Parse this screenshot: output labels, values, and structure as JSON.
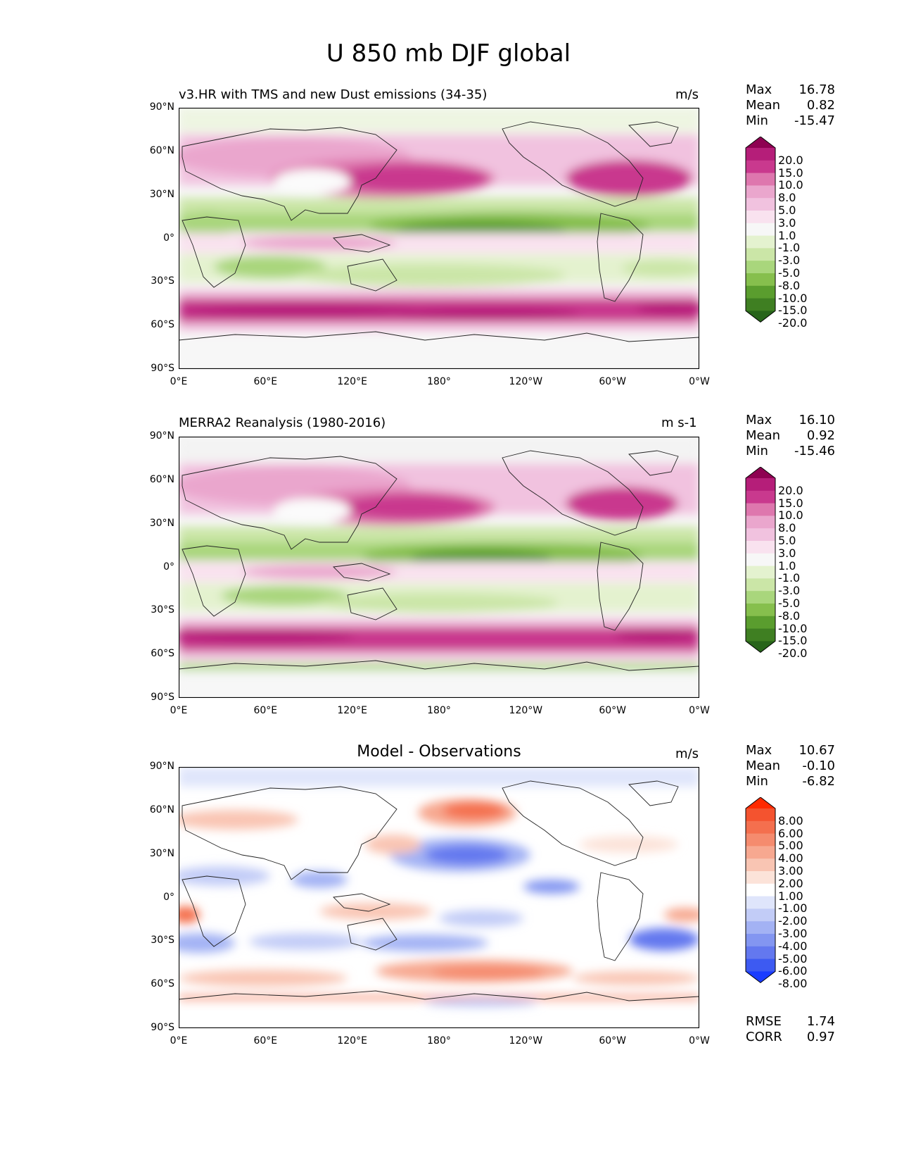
{
  "title": "U 850 mb DJF global",
  "axes": {
    "lat_labels": [
      "90°N",
      "60°N",
      "30°N",
      "0°",
      "30°S",
      "60°S",
      "90°S"
    ],
    "lon_labels": [
      "0°E",
      "60°E",
      "120°E",
      "180°",
      "120°W",
      "60°W",
      "0°W"
    ]
  },
  "panels": [
    {
      "title": "v3.HR with TMS and new Dust emissions (34-35)",
      "units": "m/s",
      "stats": [
        {
          "label": "Max",
          "value": "16.78"
        },
        {
          "label": "Mean",
          "value": "0.82"
        },
        {
          "label": "Min",
          "value": "-15.47"
        }
      ],
      "colorbar": {
        "labels": [
          "20.0",
          "15.0",
          "10.0",
          "8.0",
          "5.0",
          "3.0",
          "1.0",
          "-1.0",
          "-3.0",
          "-5.0",
          "-8.0",
          "-10.0",
          "-15.0",
          "-20.0"
        ],
        "colors": [
          "#8e0152",
          "#b51e79",
          "#c9398e",
          "#de77ae",
          "#eaa6cd",
          "#f1c2df",
          "#f9e2ef",
          "#f7f7f7",
          "#e4f2cf",
          "#cbe6a7",
          "#a9d67c",
          "#86bf4d",
          "#5a9d2e",
          "#3f7f22",
          "#27641a"
        ]
      }
    },
    {
      "title": "MERRA2 Reanalysis (1980-2016)",
      "units": "m s-1",
      "stats": [
        {
          "label": "Max",
          "value": "16.10"
        },
        {
          "label": "Mean",
          "value": "0.92"
        },
        {
          "label": "Min",
          "value": "-15.46"
        }
      ],
      "colorbar": {
        "labels": [
          "20.0",
          "15.0",
          "10.0",
          "8.0",
          "5.0",
          "3.0",
          "1.0",
          "-1.0",
          "-3.0",
          "-5.0",
          "-8.0",
          "-10.0",
          "-15.0",
          "-20.0"
        ],
        "colors": [
          "#8e0152",
          "#b51e79",
          "#c9398e",
          "#de77ae",
          "#eaa6cd",
          "#f1c2df",
          "#f9e2ef",
          "#f7f7f7",
          "#e4f2cf",
          "#cbe6a7",
          "#a9d67c",
          "#86bf4d",
          "#5a9d2e",
          "#3f7f22",
          "#27641a"
        ]
      }
    },
    {
      "title": "Model - Observations",
      "units": "m/s",
      "stats": [
        {
          "label": "Max",
          "value": "10.67"
        },
        {
          "label": "Mean",
          "value": "-0.10"
        },
        {
          "label": "Min",
          "value": "-6.82"
        }
      ],
      "extra": [
        {
          "label": "RMSE",
          "value": "1.74"
        },
        {
          "label": "CORR",
          "value": "0.97"
        }
      ],
      "colorbar": {
        "labels": [
          "8.00",
          "6.00",
          "5.00",
          "4.00",
          "3.00",
          "2.00",
          "1.00",
          "-1.00",
          "-2.00",
          "-3.00",
          "-4.00",
          "-5.00",
          "-6.00",
          "-8.00"
        ],
        "colors": [
          "#ff2a00",
          "#f4532f",
          "#f46f4e",
          "#f58b6e",
          "#f7a890",
          "#f9c5b3",
          "#fce3d9",
          "#ffffff",
          "#dfe5fb",
          "#c2ccf7",
          "#a3b2f4",
          "#8396f1",
          "#6378ef",
          "#3d5af2",
          "#1a3cff"
        ]
      }
    }
  ]
}
